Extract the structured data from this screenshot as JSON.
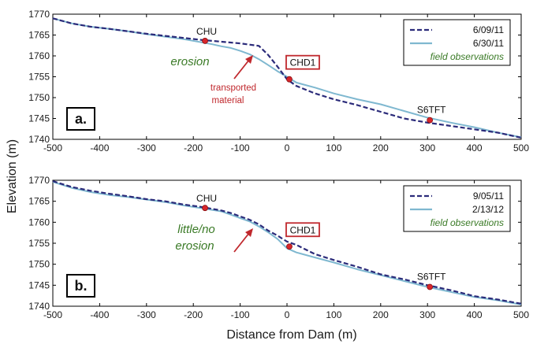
{
  "chart_data": [
    {
      "type": "line",
      "panel": "a.",
      "xlim": [
        -500,
        500
      ],
      "ylim": [
        1740,
        1770
      ],
      "xticks": [
        -500,
        -400,
        -300,
        -200,
        -100,
        0,
        100,
        200,
        300,
        400,
        500
      ],
      "yticks": [
        1740,
        1745,
        1750,
        1755,
        1760,
        1765,
        1770
      ],
      "series": [
        {
          "name": "6/09/11",
          "style": "dashed",
          "color": "#2b2b7a",
          "x": [
            -500,
            -460,
            -420,
            -380,
            -340,
            -300,
            -260,
            -220,
            -180,
            -160,
            -140,
            -100,
            -60,
            -40,
            -20,
            0,
            20,
            60,
            100,
            150,
            200,
            250,
            300,
            350,
            400,
            450,
            500
          ],
          "y": [
            1769,
            1767.8,
            1767,
            1766.5,
            1765.9,
            1765.3,
            1764.8,
            1764.3,
            1763.8,
            1763.6,
            1763.4,
            1763.0,
            1762.4,
            1760.2,
            1757.4,
            1754.4,
            1752.8,
            1751.0,
            1749.6,
            1748.2,
            1746.6,
            1745.0,
            1744.0,
            1743.2,
            1742.4,
            1741.6,
            1740.4
          ]
        },
        {
          "name": "6/30/11",
          "style": "solid",
          "color": "#7fb8d0",
          "x": [
            -500,
            -460,
            -420,
            -380,
            -340,
            -300,
            -260,
            -220,
            -180,
            -160,
            -140,
            -120,
            -100,
            -80,
            -60,
            -40,
            -20,
            0,
            20,
            60,
            100,
            150,
            200,
            250,
            300,
            350,
            400,
            450,
            500
          ],
          "y": [
            1769,
            1767.8,
            1767,
            1766.5,
            1765.9,
            1765.2,
            1764.6,
            1764.0,
            1763.2,
            1762.8,
            1762.3,
            1761.9,
            1761.2,
            1760.4,
            1759.2,
            1757.8,
            1756.3,
            1755.0,
            1753.6,
            1752.4,
            1751.0,
            1749.6,
            1748.4,
            1746.8,
            1745.2,
            1744.0,
            1742.9,
            1741.6,
            1740.5
          ]
        }
      ],
      "field_observations": [
        {
          "label": "CHU",
          "x": -175,
          "y": 1763.6
        },
        {
          "label": "CHD1",
          "x": 5,
          "y": 1754.4
        },
        {
          "label": "S6TFT",
          "x": 305,
          "y": 1744.6
        }
      ],
      "annotations": {
        "erosion": "erosion",
        "transported_line1": "transported",
        "transported_line2": "material"
      },
      "legend": {
        "placement": "top-right",
        "entries": [
          "6/09/11",
          "6/30/11",
          "field observations"
        ]
      }
    },
    {
      "type": "line",
      "panel": "b.",
      "xlim": [
        -500,
        500
      ],
      "ylim": [
        1740,
        1770
      ],
      "xticks": [
        -500,
        -400,
        -300,
        -200,
        -100,
        0,
        100,
        200,
        300,
        400,
        500
      ],
      "yticks": [
        1740,
        1745,
        1750,
        1755,
        1760,
        1765,
        1770
      ],
      "series": [
        {
          "name": "9/05/11",
          "style": "dashed",
          "color": "#2b2b7a",
          "x": [
            -500,
            -460,
            -420,
            -380,
            -340,
            -300,
            -260,
            -220,
            -180,
            -140,
            -120,
            -100,
            -80,
            -60,
            -40,
            -20,
            0,
            20,
            60,
            100,
            150,
            200,
            250,
            300,
            350,
            400,
            450,
            500
          ],
          "y": [
            1769.8,
            1768.4,
            1767.5,
            1766.8,
            1766.2,
            1765.5,
            1765.0,
            1764.2,
            1763.6,
            1762.8,
            1762.2,
            1761.4,
            1760.6,
            1759.5,
            1758.0,
            1756.8,
            1755.4,
            1754.6,
            1752.4,
            1751.0,
            1749.4,
            1747.6,
            1746.4,
            1745.0,
            1743.8,
            1742.4,
            1741.6,
            1740.6
          ]
        },
        {
          "name": "2/13/12",
          "style": "solid",
          "color": "#7fb8d0",
          "x": [
            -500,
            -460,
            -420,
            -380,
            -340,
            -300,
            -260,
            -220,
            -180,
            -140,
            -120,
            -100,
            -80,
            -60,
            -40,
            -20,
            0,
            20,
            60,
            100,
            150,
            200,
            250,
            300,
            350,
            400,
            450,
            500
          ],
          "y": [
            1769.6,
            1768.2,
            1767.2,
            1766.5,
            1766.0,
            1765.4,
            1764.8,
            1764.0,
            1763.3,
            1762.6,
            1761.8,
            1761.0,
            1760.2,
            1759.0,
            1757.6,
            1756.0,
            1753.8,
            1752.8,
            1751.6,
            1750.4,
            1748.8,
            1747.4,
            1746.0,
            1744.6,
            1743.4,
            1742.2,
            1741.4,
            1740.4
          ]
        }
      ],
      "field_observations": [
        {
          "label": "CHU",
          "x": -175,
          "y": 1763.4
        },
        {
          "label": "CHD1",
          "x": 5,
          "y": 1754.2
        },
        {
          "label": "S6TFT",
          "x": 305,
          "y": 1744.6
        }
      ],
      "annotations": {
        "little_line1": "little/no",
        "little_line2": "erosion"
      },
      "legend": {
        "placement": "top-right",
        "entries": [
          "9/05/11",
          "2/13/12",
          "field observations"
        ]
      }
    }
  ],
  "shared": {
    "ylabel": "Elevation (m)",
    "xlabel": "Distance from Dam (m)",
    "colors": {
      "dashed": "#2b2b7a",
      "solid": "#7fb8d0",
      "marker": "#d8262b",
      "annot_red": "#c0282d",
      "annot_green": "#3a7a26"
    }
  }
}
